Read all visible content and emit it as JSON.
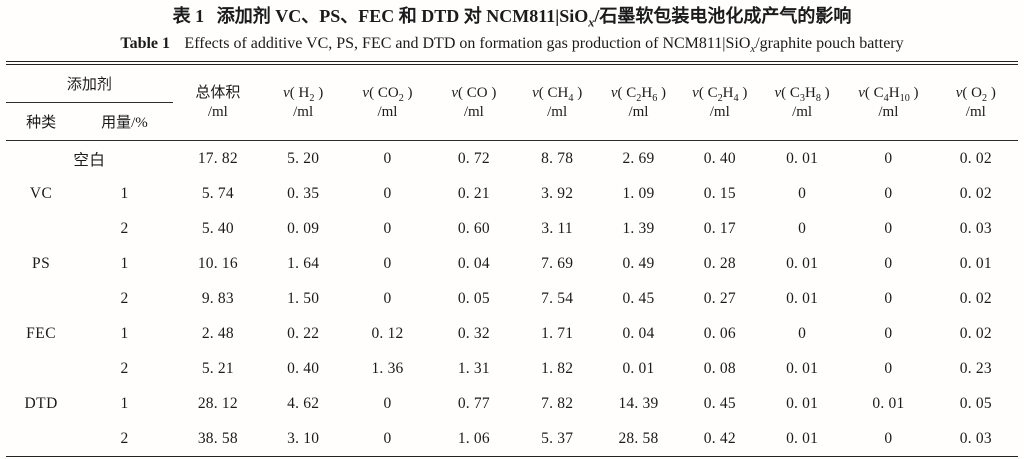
{
  "title_zh": {
    "label": "表 1",
    "pre": "添加剂 VC、PS、FEC 和 DTD 对 NCM811|SiO",
    "sub": "x",
    "post": "/石墨软包装电池化成产气的影响"
  },
  "title_en": {
    "label": "Table 1",
    "pre": "Effects of additive VC, PS, FEC and DTD on formation gas production of NCM811|SiO",
    "sub": "x",
    "post": "/graphite pouch battery"
  },
  "table": {
    "header": {
      "group_label": "添加剂",
      "kind_label": "种类",
      "amount_label": "用量/%",
      "total": {
        "line1": "总体积",
        "unit": "/ml"
      },
      "gas_cols": [
        {
          "id": "h2",
          "v": "v",
          "parts": [
            "( H",
            {
              "s": "2"
            },
            " )"
          ],
          "unit": "/ml"
        },
        {
          "id": "co2",
          "v": "v",
          "parts": [
            "( CO",
            {
              "s": "2"
            },
            " )"
          ],
          "unit": "/ml"
        },
        {
          "id": "co",
          "v": "v",
          "parts": [
            "( CO )"
          ],
          "unit": "/ml"
        },
        {
          "id": "ch4",
          "v": "v",
          "parts": [
            "( CH",
            {
              "s": "4"
            },
            " )"
          ],
          "unit": "/ml"
        },
        {
          "id": "c2h6",
          "v": "v",
          "parts": [
            "( C",
            {
              "s": "2"
            },
            "H",
            {
              "s": "6"
            },
            " )"
          ],
          "unit": "/ml"
        },
        {
          "id": "c2h4",
          "v": "v",
          "parts": [
            "( C",
            {
              "s": "2"
            },
            "H",
            {
              "s": "4"
            },
            " )"
          ],
          "unit": "/ml"
        },
        {
          "id": "c3h8",
          "v": "v",
          "parts": [
            "( C",
            {
              "s": "3"
            },
            "H",
            {
              "s": "8"
            },
            " )"
          ],
          "unit": "/ml"
        },
        {
          "id": "c4h10",
          "v": "v",
          "parts": [
            "( C",
            {
              "s": "4"
            },
            "H",
            {
              "s": "10"
            },
            " )"
          ],
          "unit": "/ml"
        },
        {
          "id": "o2",
          "v": "v",
          "parts": [
            "( O",
            {
              "s": "2"
            },
            " )"
          ],
          "unit": "/ml"
        }
      ]
    },
    "rows": [
      {
        "kind": "空白",
        "blank_span": true,
        "amount": "",
        "values": [
          "17. 82",
          "5. 20",
          "0",
          "0. 72",
          "8. 78",
          "2. 69",
          "0. 40",
          "0. 01",
          "0",
          "0. 02"
        ]
      },
      {
        "kind": "VC",
        "amount": "1",
        "values": [
          "5. 74",
          "0. 35",
          "0",
          "0. 21",
          "3. 92",
          "1. 09",
          "0. 15",
          "0",
          "0",
          "0. 02"
        ]
      },
      {
        "kind": "",
        "amount": "2",
        "values": [
          "5. 40",
          "0. 09",
          "0",
          "0. 60",
          "3. 11",
          "1. 39",
          "0. 17",
          "0",
          "0",
          "0. 03"
        ]
      },
      {
        "kind": "PS",
        "amount": "1",
        "values": [
          "10. 16",
          "1. 64",
          "0",
          "0. 04",
          "7. 69",
          "0. 49",
          "0. 28",
          "0. 01",
          "0",
          "0. 01"
        ]
      },
      {
        "kind": "",
        "amount": "2",
        "values": [
          "9. 83",
          "1. 50",
          "0",
          "0. 05",
          "7. 54",
          "0. 45",
          "0. 27",
          "0. 01",
          "0",
          "0. 02"
        ]
      },
      {
        "kind": "FEC",
        "amount": "1",
        "values": [
          "2. 48",
          "0. 22",
          "0. 12",
          "0. 32",
          "1. 71",
          "0. 04",
          "0. 06",
          "0",
          "0",
          "0. 02"
        ]
      },
      {
        "kind": "",
        "amount": "2",
        "values": [
          "5. 21",
          "0. 40",
          "1. 36",
          "1. 31",
          "1. 82",
          "0. 01",
          "0. 08",
          "0. 01",
          "0",
          "0. 23"
        ]
      },
      {
        "kind": "DTD",
        "amount": "1",
        "values": [
          "28. 12",
          "4. 62",
          "0",
          "0. 77",
          "7. 82",
          "14. 39",
          "0. 45",
          "0. 01",
          "0. 01",
          "0. 05"
        ]
      },
      {
        "kind": "",
        "amount": "2",
        "values": [
          "38. 58",
          "3. 10",
          "0",
          "1. 06",
          "5. 37",
          "28. 58",
          "0. 42",
          "0. 01",
          "0",
          "0. 03"
        ]
      }
    ]
  }
}
